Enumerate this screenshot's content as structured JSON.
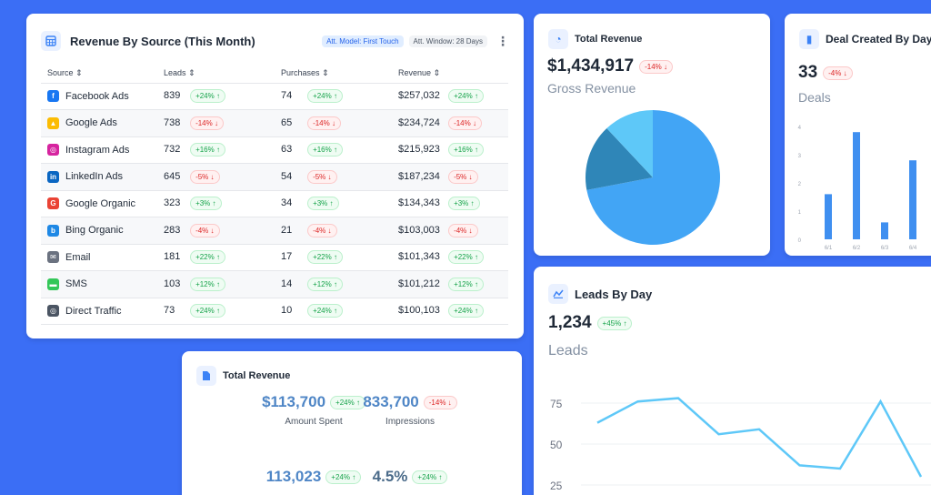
{
  "source_table": {
    "title": "Revenue By Source (This Month)",
    "chip_model": "Att. Model: First Touch",
    "chip_window": "Att. Window: 28 Days",
    "columns": [
      "Source",
      "Leads",
      "Purchases",
      "Revenue"
    ],
    "rows": [
      {
        "source": "Facebook Ads",
        "icon": "facebook-icon",
        "leads": "839",
        "leads_delta": "+24% ↑",
        "purchases": "74",
        "purchases_delta": "+24% ↑",
        "revenue": "$257,032",
        "revenue_delta": "+24% ↑",
        "trend": "up"
      },
      {
        "source": "Google Ads",
        "icon": "google-ads-icon",
        "leads": "738",
        "leads_delta": "-14% ↓",
        "purchases": "65",
        "purchases_delta": "-14% ↓",
        "revenue": "$234,724",
        "revenue_delta": "-14% ↓",
        "trend": "down"
      },
      {
        "source": "Instagram Ads",
        "icon": "instagram-icon",
        "leads": "732",
        "leads_delta": "+16% ↑",
        "purchases": "63",
        "purchases_delta": "+16% ↑",
        "revenue": "$215,923",
        "revenue_delta": "+16% ↑",
        "trend": "up"
      },
      {
        "source": "LinkedIn Ads",
        "icon": "linkedin-icon",
        "leads": "645",
        "leads_delta": "-5% ↓",
        "purchases": "54",
        "purchases_delta": "-5% ↓",
        "revenue": "$187,234",
        "revenue_delta": "-5% ↓",
        "trend": "down"
      },
      {
        "source": "Google Organic",
        "icon": "google-icon",
        "leads": "323",
        "leads_delta": "+3% ↑",
        "purchases": "34",
        "purchases_delta": "+3% ↑",
        "revenue": "$134,343",
        "revenue_delta": "+3% ↑",
        "trend": "up"
      },
      {
        "source": "Bing Organic",
        "icon": "bing-icon",
        "leads": "283",
        "leads_delta": "-4% ↓",
        "purchases": "21",
        "purchases_delta": "-4% ↓",
        "revenue": "$103,003",
        "revenue_delta": "-4% ↓",
        "trend": "down"
      },
      {
        "source": "Email",
        "icon": "email-icon",
        "leads": "181",
        "leads_delta": "+22% ↑",
        "purchases": "17",
        "purchases_delta": "+22% ↑",
        "revenue": "$101,343",
        "revenue_delta": "+22% ↑",
        "trend": "up"
      },
      {
        "source": "SMS",
        "icon": "sms-icon",
        "leads": "103",
        "leads_delta": "+12% ↑",
        "purchases": "14",
        "purchases_delta": "+12% ↑",
        "revenue": "$101,212",
        "revenue_delta": "+12% ↑",
        "trend": "up"
      },
      {
        "source": "Direct Traffic",
        "icon": "direct-traffic-icon",
        "leads": "73",
        "leads_delta": "+24% ↑",
        "purchases": "10",
        "purchases_delta": "+24% ↑",
        "revenue": "$100,103",
        "revenue_delta": "+24% ↑",
        "trend": "up"
      }
    ]
  },
  "total_revenue_pie": {
    "title": "Total Revenue",
    "value": "$1,434,917",
    "delta": "-14% ↓",
    "subtitle": "Gross Revenue"
  },
  "deal_card": {
    "title": "Deal Created By Day",
    "value": "33",
    "delta": "-4% ↓",
    "subtitle": "Deals"
  },
  "leads_card": {
    "title": "Leads By Day",
    "value": "1,234",
    "delta": "+45% ↑",
    "subtitle": "Leads"
  },
  "bottom_revenue": {
    "title": "Total Revenue",
    "metrics": [
      {
        "value": "$113,700",
        "delta": "+24% ↑",
        "label": "Amount Spent",
        "trend": "up"
      },
      {
        "value": "833,700",
        "delta": "-14% ↓",
        "label": "Impressions",
        "trend": "down"
      },
      {
        "value": "113,023",
        "delta": "+24% ↑",
        "label": "",
        "trend": "up"
      },
      {
        "value": "4.5%",
        "delta": "+24% ↑",
        "label": "",
        "trend": "up"
      }
    ]
  },
  "colors": {
    "background": "#3b6ef5",
    "up": "#16a34a",
    "down": "#dc2626",
    "chart_blue": "#42a5f5",
    "chart_light": "#5ec8f8",
    "chart_dark": "#2f86b8"
  },
  "chart_data": [
    {
      "type": "pie",
      "labels": [
        "",
        "",
        ""
      ],
      "values": [
        72,
        16,
        12
      ],
      "colors": [
        "#42a5f5",
        "#2f86b8",
        "#5ec8f8"
      ]
    },
    {
      "type": "bar",
      "categories": [
        "6/1",
        "6/2",
        "6/3",
        "6/4"
      ],
      "values": [
        1.6,
        3.8,
        0.6,
        2.8
      ],
      "ylim": [
        0,
        4
      ],
      "yticks": [
        "0",
        "1",
        "2",
        "3",
        "4"
      ]
    },
    {
      "type": "line",
      "values": [
        63,
        76,
        78,
        56,
        59,
        37,
        35,
        76,
        30
      ],
      "ylim": [
        25,
        80
      ],
      "yticks": [
        "75",
        "50",
        "25"
      ]
    }
  ]
}
